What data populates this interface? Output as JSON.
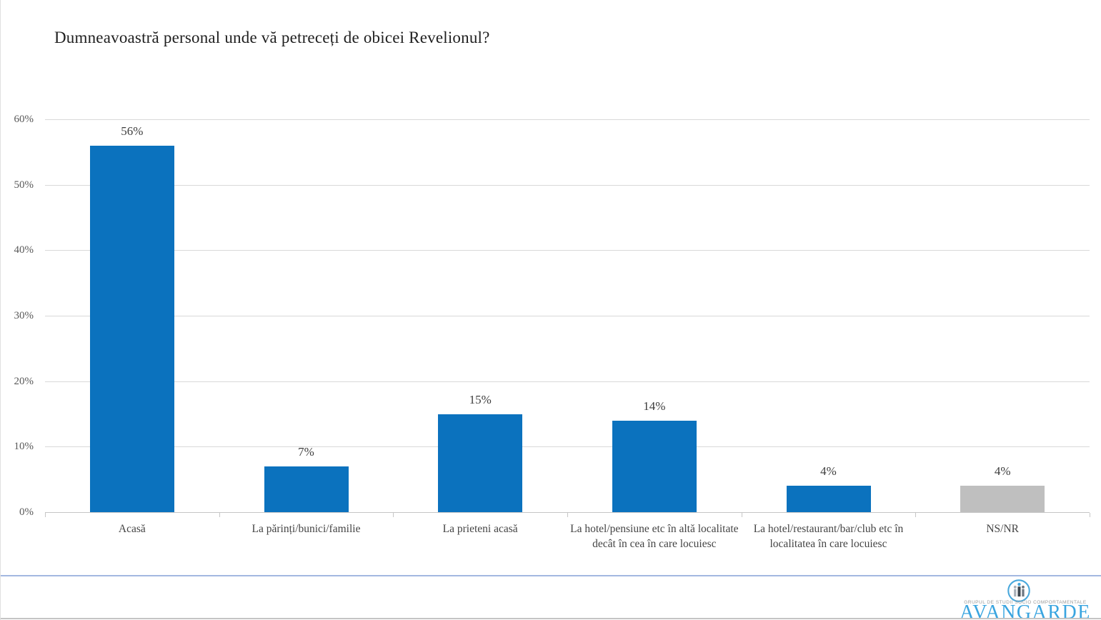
{
  "title": "Dumneavoastră personal unde vă petreceți de obicei Revelionul?",
  "chart_data": {
    "type": "bar",
    "title": "Dumneavoastră personal unde vă petreceți de obicei Revelionul?",
    "categories": [
      "Acasă",
      "La părinți/bunici/familie",
      "La prieteni acasă",
      "La hotel/pensiune etc în altă localitate decât în cea în care locuiesc",
      "La hotel/restaurant/bar/club etc în localitatea în care locuiesc",
      "NS/NR"
    ],
    "values": [
      56,
      7,
      15,
      14,
      4,
      4
    ],
    "value_labels": [
      "56%",
      "7%",
      "15%",
      "14%",
      "4%",
      "4%"
    ],
    "bar_colors": [
      "#0b72be",
      "#0b72be",
      "#0b72be",
      "#0b72be",
      "#0b72be",
      "#bfbfbf"
    ],
    "xlabel": "",
    "ylabel": "",
    "ylim": [
      0,
      60
    ],
    "ytick_values": [
      0,
      10,
      20,
      30,
      40,
      50,
      60
    ],
    "ytick_labels": [
      "0%",
      "10%",
      "20%",
      "30%",
      "40%",
      "50%",
      "60%"
    ],
    "grid": "horizontal",
    "legend": "none"
  },
  "footer": {
    "logo_caption": "GRUPUL DE STUDII SOCIO COMPORTAMENTALE",
    "logo_name": "AVANGARDE"
  },
  "colors": {
    "bar_blue": "#0b72be",
    "bar_gray": "#bfbfbf",
    "gridline": "#d9d9d9",
    "axis_text": "#595959",
    "category_text": "#444444",
    "title_text": "#1f1f1f",
    "divider_blue": "#a3b8e0",
    "logo_blue": "#3aa5e0"
  }
}
